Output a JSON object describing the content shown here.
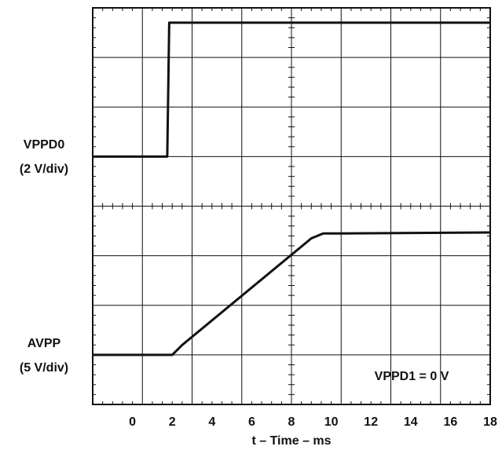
{
  "chart_data": {
    "type": "line",
    "title": "",
    "xlabel": "t – Time – ms",
    "xlim": [
      -2,
      18
    ],
    "x_ticks": [
      "0",
      "2",
      "4",
      "6",
      "8",
      "10",
      "12",
      "14",
      "16",
      "18"
    ],
    "x_tick_values": [
      0,
      2,
      4,
      6,
      8,
      10,
      12,
      14,
      16,
      18
    ],
    "divisions": {
      "x": 8,
      "y_per_panel": 4
    },
    "grid": true,
    "panels": [
      {
        "label_line1": "VPPD0",
        "label_line2": "(2 V/div)",
        "ylim_div": [
          0,
          4
        ],
        "series": [
          {
            "x": [
              -2,
              1.75,
              1.85,
              18
            ],
            "y": [
              1.0,
              1.0,
              3.7,
              3.7
            ]
          }
        ]
      },
      {
        "label_line1": "AVPP",
        "label_line2": "(5 V/div)",
        "ylim_div": [
          0,
          4
        ],
        "annotation": "VPPD1 = 0 V",
        "series": [
          {
            "x": [
              -2,
              2.0,
              2.5,
              9.0,
              9.6,
              10.5,
              18
            ],
            "y": [
              1.0,
              1.0,
              1.2,
              3.35,
              3.45,
              3.45,
              3.47
            ]
          }
        ]
      }
    ]
  }
}
